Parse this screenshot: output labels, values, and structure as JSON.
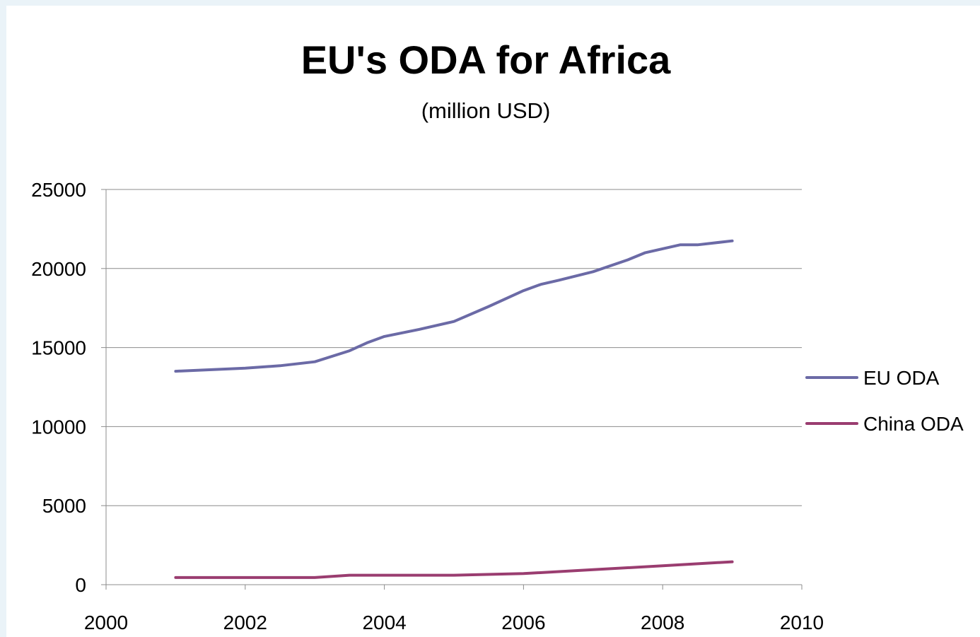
{
  "chart_data": {
    "type": "line",
    "title": "EU's ODA for Africa",
    "subtitle": "(million USD)",
    "xlabel": "",
    "ylabel": "",
    "xlim": [
      2000,
      2010
    ],
    "ylim": [
      0,
      25000
    ],
    "x_ticks": [
      2000,
      2002,
      2004,
      2006,
      2008,
      2010
    ],
    "y_ticks": [
      0,
      5000,
      10000,
      15000,
      20000,
      25000
    ],
    "grid": "horizontal",
    "legend_position": "right",
    "series": [
      {
        "name": "EU ODA",
        "color": "#6b6aa6",
        "points": [
          {
            "x": 2001,
            "y": 13500
          },
          {
            "x": 2002,
            "y": 13700
          },
          {
            "x": 2002.5,
            "y": 13850
          },
          {
            "x": 2003,
            "y": 14100
          },
          {
            "x": 2003.5,
            "y": 14800
          },
          {
            "x": 2003.75,
            "y": 15300
          },
          {
            "x": 2004,
            "y": 15700
          },
          {
            "x": 2004.5,
            "y": 16150
          },
          {
            "x": 2005,
            "y": 16650
          },
          {
            "x": 2005.5,
            "y": 17600
          },
          {
            "x": 2006,
            "y": 18600
          },
          {
            "x": 2006.25,
            "y": 19000
          },
          {
            "x": 2006.5,
            "y": 19250
          },
          {
            "x": 2007,
            "y": 19800
          },
          {
            "x": 2007.5,
            "y": 20550
          },
          {
            "x": 2007.75,
            "y": 21000
          },
          {
            "x": 2008.25,
            "y": 21500
          },
          {
            "x": 2008.5,
            "y": 21500
          },
          {
            "x": 2009,
            "y": 21750
          }
        ]
      },
      {
        "name": "China ODA",
        "color": "#9a3d70",
        "points": [
          {
            "x": 2001,
            "y": 450
          },
          {
            "x": 2002,
            "y": 450
          },
          {
            "x": 2003,
            "y": 450
          },
          {
            "x": 2003.5,
            "y": 600
          },
          {
            "x": 2004,
            "y": 600
          },
          {
            "x": 2005,
            "y": 600
          },
          {
            "x": 2006,
            "y": 700
          },
          {
            "x": 2007,
            "y": 950
          },
          {
            "x": 2008,
            "y": 1200
          },
          {
            "x": 2009,
            "y": 1450
          }
        ]
      }
    ]
  }
}
